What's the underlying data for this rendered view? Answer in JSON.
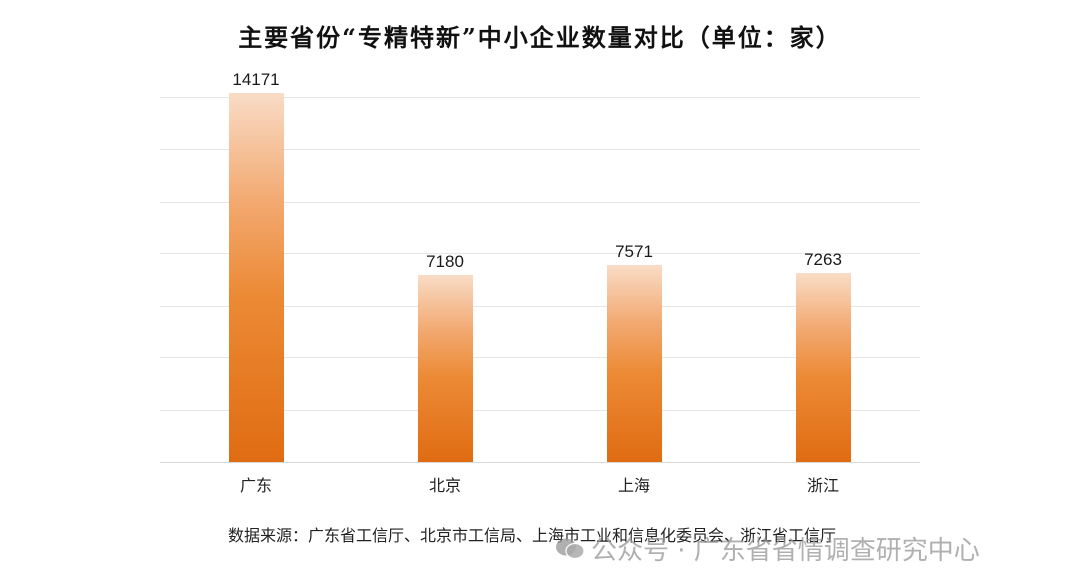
{
  "chart_data": {
    "type": "bar",
    "title": "主要省份“专精特新”中小企业数量对比（单位：家）",
    "categories": [
      "广东",
      "北京",
      "上海",
      "浙江"
    ],
    "values": [
      14171,
      7180,
      7571,
      7263
    ],
    "value_labels": [
      "14171",
      "7180",
      "7571",
      "7263"
    ],
    "xlabel": "",
    "ylabel": "",
    "ylim": [
      0,
      14000
    ],
    "grid": true,
    "gridlines": 7,
    "legend": null,
    "bar_color_gradient": [
      "#f9dcc6",
      "#e06c12"
    ],
    "source": "数据来源：广东省工信厅、北京市工信局、上海市工业和信息化委员会、浙江省工信厅"
  },
  "watermark": {
    "text": "公众号 · 广东省省情调查研究中心",
    "icon": "wechat-icon"
  }
}
